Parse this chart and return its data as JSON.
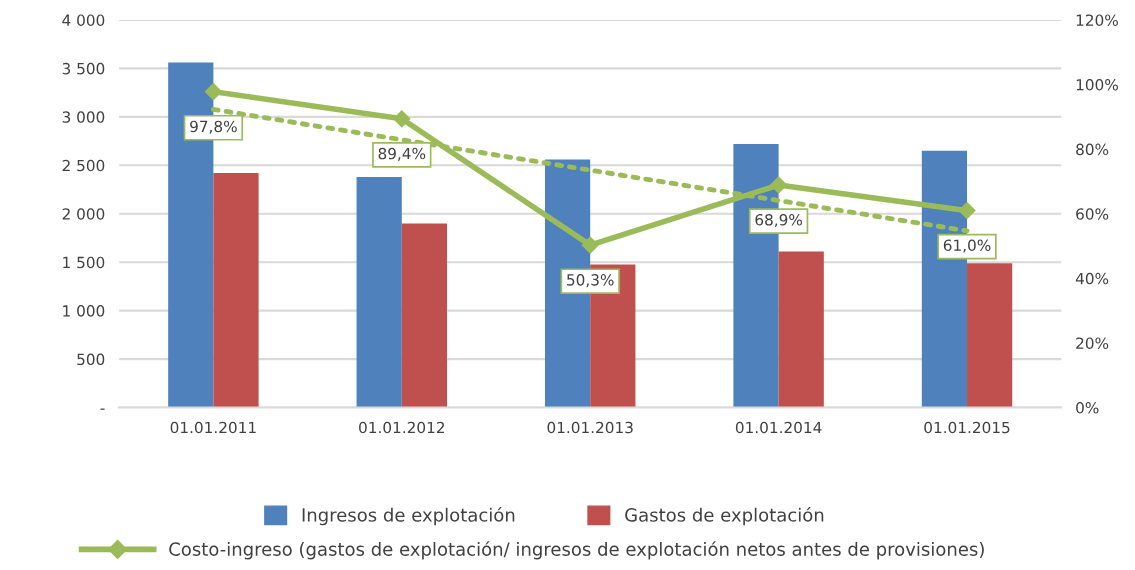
{
  "chart_data": {
    "type": "bar",
    "categories": [
      "01.01.2011",
      "01.01.2012",
      "01.01.2013",
      "01.01.2014",
      "01.01.2015"
    ],
    "series": [
      {
        "name": "Ingresos de explotación",
        "color": "#4f81bd",
        "values": [
          3560,
          2380,
          2560,
          2720,
          2650
        ]
      },
      {
        "name": "Gastos de explotación",
        "color": "#c0504d",
        "values": [
          2420,
          1900,
          1475,
          1610,
          1490
        ]
      },
      {
        "name": "Costo-ingreso (gastos de explotación/ ingresos de explotación netos antes de provisiones)",
        "type": "line",
        "axis": "y2",
        "color": "#9bbb59",
        "marker": "diamond",
        "line_style": "solid",
        "values": [
          97.8,
          89.4,
          50.3,
          68.9,
          61.0
        ],
        "value_labels": [
          "97,8%",
          "89,4%",
          "50,3%",
          "68,9%",
          "61,0%"
        ]
      },
      {
        "type": "line",
        "axis": "y2",
        "color": "#9bbb59",
        "marker": "none",
        "line_style": "dotted",
        "values": [
          92.3,
          82.9,
          73.5,
          64.1,
          54.7
        ]
      }
    ],
    "ylim": [
      0,
      4000
    ],
    "yticks": [
      {
        "value": 0,
        "label": "-"
      },
      {
        "value": 500,
        "label": "500"
      },
      {
        "value": 1000,
        "label": "1 000"
      },
      {
        "value": 1500,
        "label": "1 500"
      },
      {
        "value": 2000,
        "label": "2 000"
      },
      {
        "value": 2500,
        "label": "2 500"
      },
      {
        "value": 3000,
        "label": "3 000"
      },
      {
        "value": 3500,
        "label": "3 500"
      },
      {
        "value": 4000,
        "label": "4 000"
      }
    ],
    "y2lim": [
      0,
      120
    ],
    "y2ticks": [
      {
        "value": 0,
        "label": "0%"
      },
      {
        "value": 20,
        "label": "20%"
      },
      {
        "value": 40,
        "label": "40%"
      },
      {
        "value": 60,
        "label": "60%"
      },
      {
        "value": 80,
        "label": "80%"
      },
      {
        "value": 100,
        "label": "100%"
      },
      {
        "value": 120,
        "label": "120%"
      }
    ],
    "grid": "y",
    "legend": "bottom"
  }
}
